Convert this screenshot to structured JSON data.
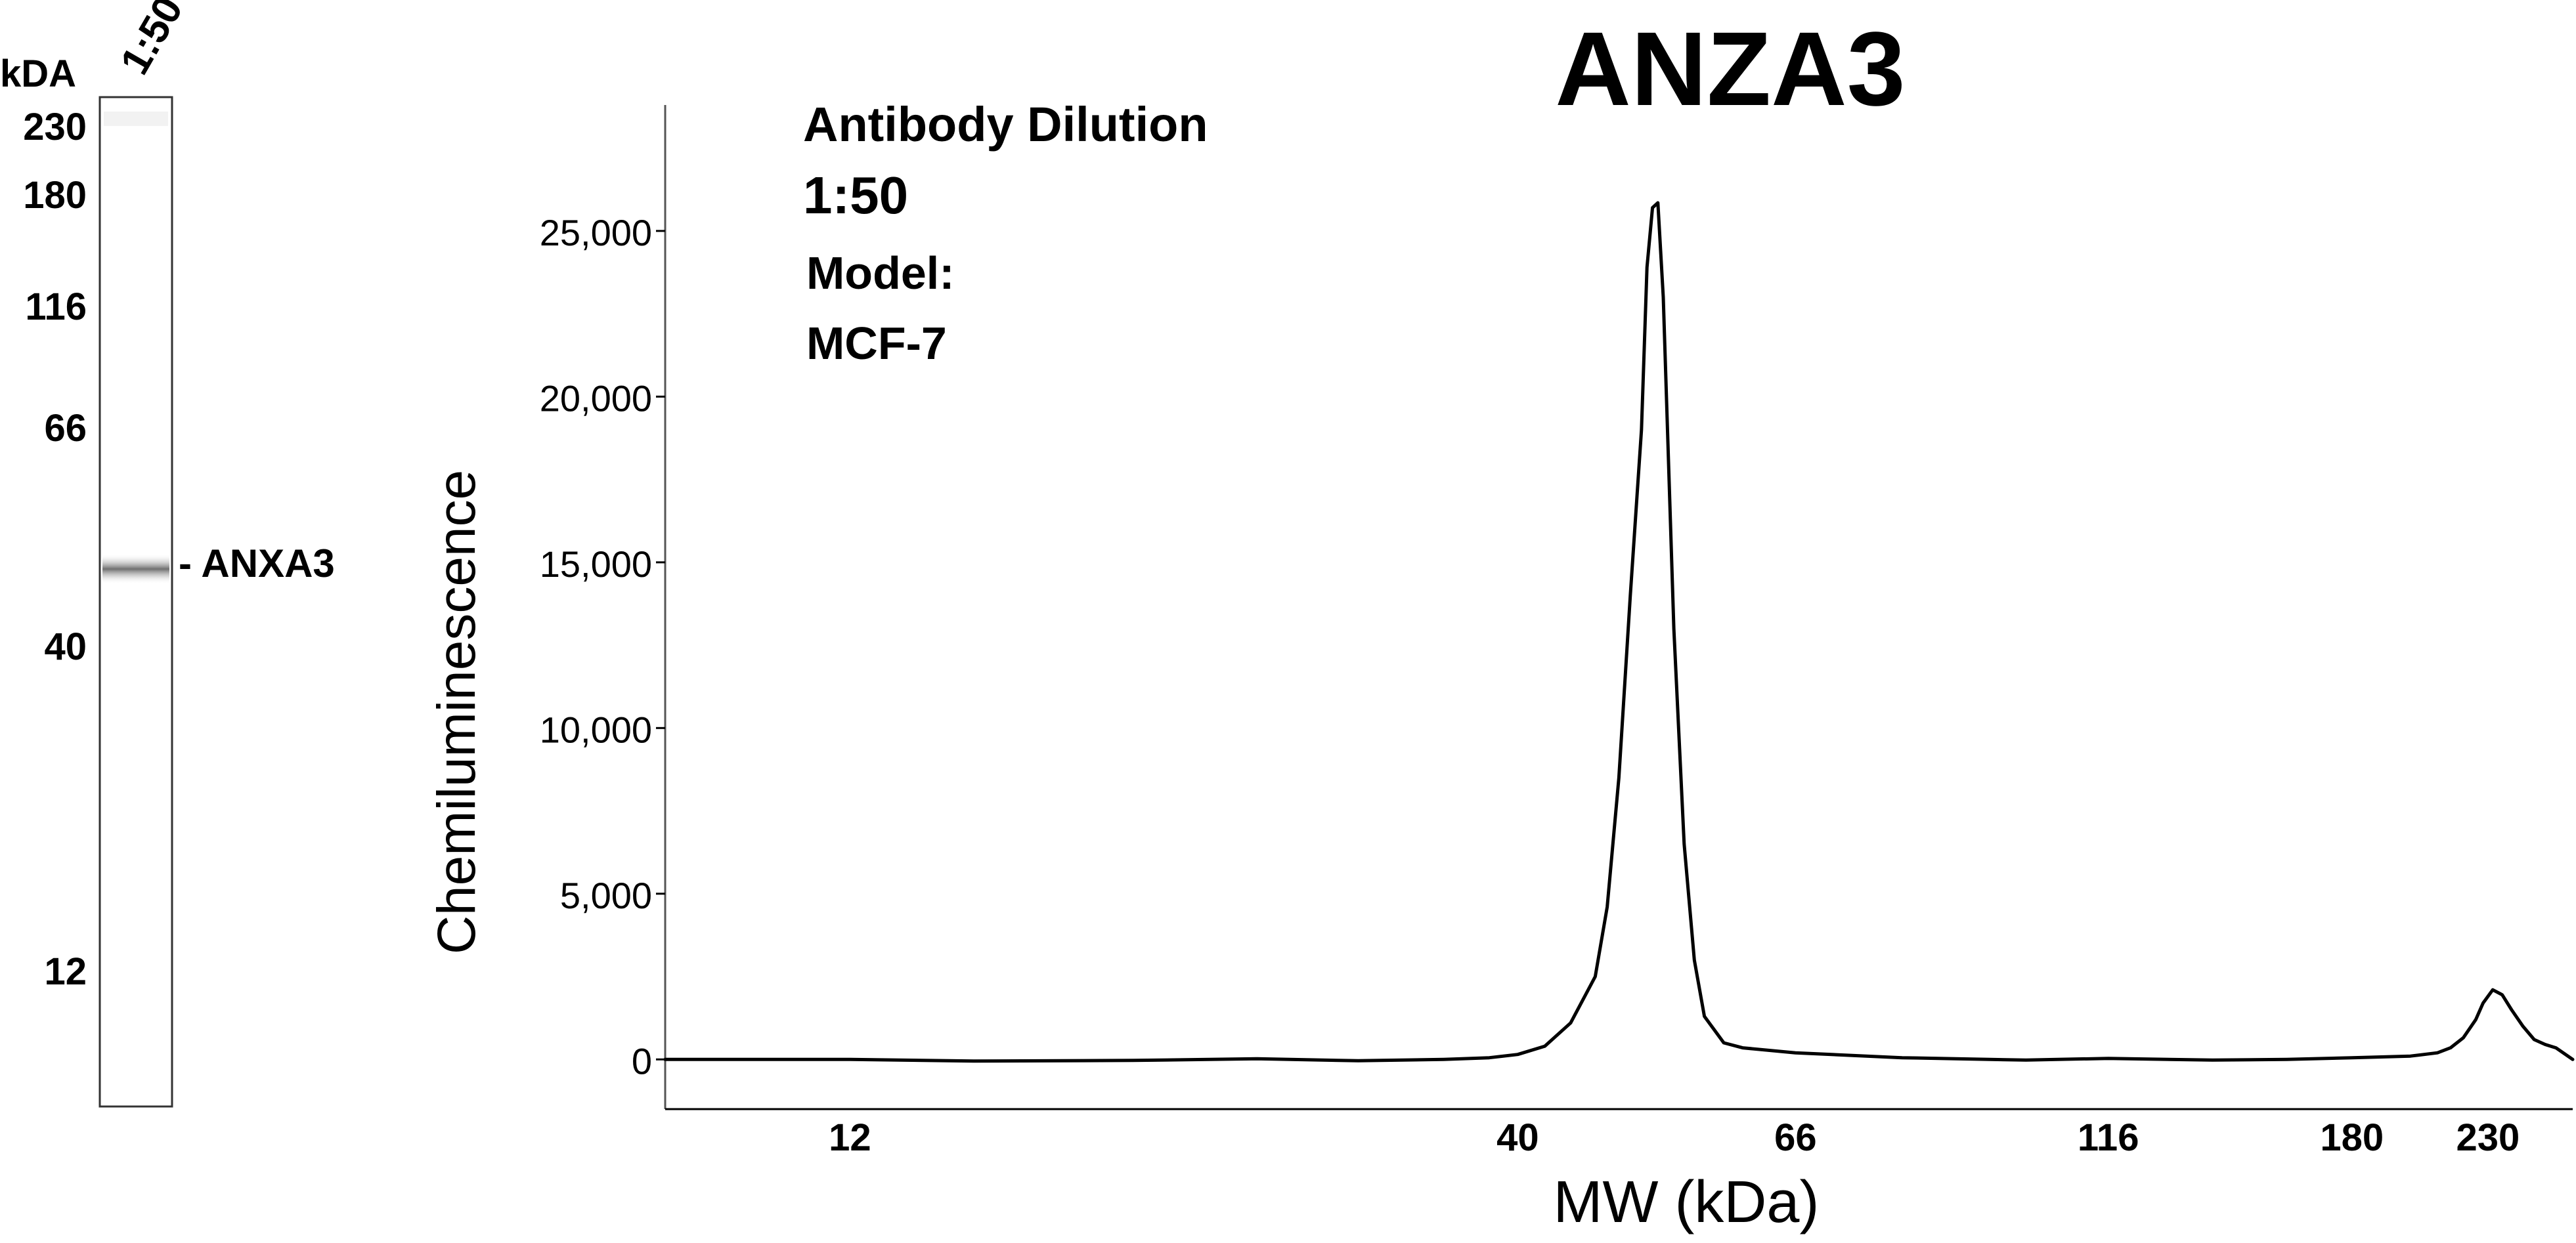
{
  "title": "ANZA3",
  "annotations": {
    "dilution_label": "Antibody Dilution",
    "dilution_value": "1:50",
    "model_label": "Model:",
    "model_value": "MCF-7"
  },
  "blot": {
    "unit_label": "kDA",
    "lane_label": "1:50",
    "markers": [
      "230",
      "180",
      "116",
      "66",
      "40",
      "12"
    ],
    "band_label": "- ANXA3",
    "band_color": "#6f6f6f"
  },
  "chart_data": {
    "type": "line",
    "title": "ANZA3",
    "xlabel": "MW (kDa)",
    "ylabel": "Chemiluminescence",
    "x_scale": "log",
    "xlim": [
      8.6,
      268
    ],
    "ylim": [
      -1500,
      28800
    ],
    "x_ticks": [
      12,
      40,
      66,
      116,
      180,
      230
    ],
    "x_tick_labels": [
      "12",
      "40",
      "66",
      "116",
      "180",
      "230"
    ],
    "y_ticks": [
      0,
      5000,
      10000,
      15000,
      20000,
      25000
    ],
    "y_tick_labels": [
      "0",
      "5,000",
      "10,000",
      "15,000",
      "20,000",
      "25,000"
    ],
    "grid": false,
    "legend": "none",
    "series": [
      {
        "color": "#000000",
        "x": [
          8.6,
          10,
          12,
          15,
          20,
          25,
          30,
          35,
          38,
          40,
          42,
          44,
          46,
          47,
          48,
          49,
          50,
          50.5,
          51,
          51.5,
          52,
          53,
          54,
          55,
          56,
          58,
          60,
          66,
          80,
          100,
          116,
          140,
          160,
          180,
          200,
          210,
          215,
          220,
          225,
          228,
          232,
          236,
          240,
          245,
          250,
          255,
          260,
          268
        ],
        "y": [
          0,
          0,
          0,
          -50,
          -30,
          20,
          -40,
          0,
          50,
          150,
          400,
          1100,
          2500,
          4600,
          8500,
          14000,
          19000,
          23900,
          25700,
          25850,
          23000,
          13000,
          6500,
          3000,
          1300,
          500,
          350,
          200,
          50,
          -20,
          30,
          -20,
          0,
          50,
          100,
          200,
          350,
          650,
          1200,
          1700,
          2100,
          1950,
          1500,
          1000,
          600,
          450,
          350,
          0
        ]
      }
    ]
  }
}
